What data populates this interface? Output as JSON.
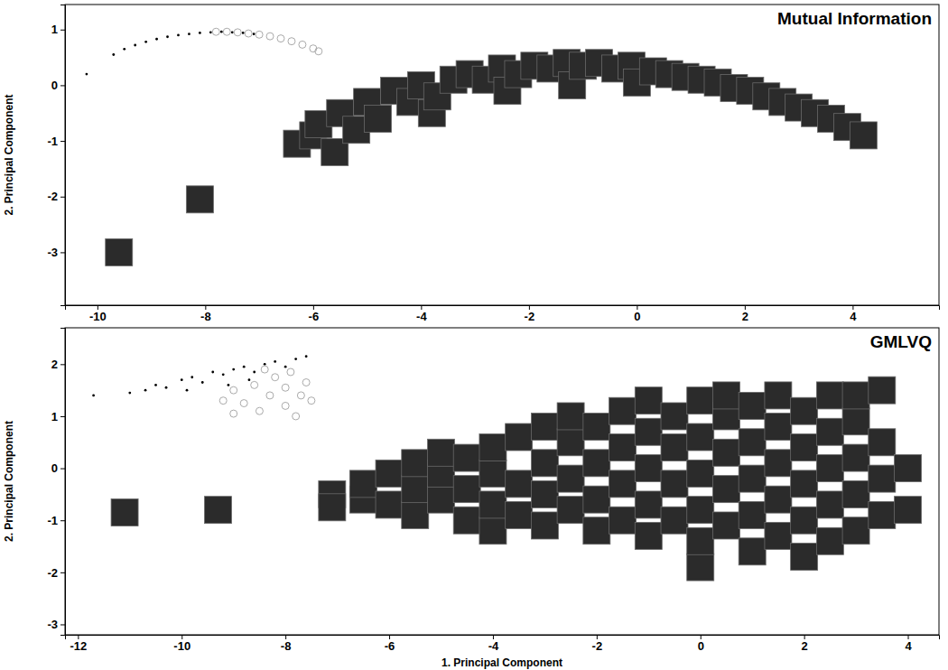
{
  "chart_data": [
    {
      "type": "scatter",
      "title": "Mutual Information",
      "y_label": "2. Principal Component",
      "xlim": [
        -10.6,
        5.6
      ],
      "ylim": [
        -3.95,
        1.45
      ],
      "xticks": [
        -10,
        -8,
        -6,
        -4,
        -2,
        0,
        2,
        4
      ],
      "yticks": [
        -3,
        -2,
        -1,
        0,
        1
      ],
      "series": [
        {
          "color": "#2b2b2b",
          "marker": "square",
          "x": [
            -9.6,
            -8.1,
            -6.3,
            -6.0,
            -5.9,
            -5.6,
            -5.5,
            -5.2,
            -5.0,
            -4.8,
            -4.5,
            -4.2,
            -4.0,
            -3.8,
            -3.7,
            -3.4,
            -3.1,
            -2.8,
            -2.5,
            -2.4,
            -2.2,
            -1.9,
            -1.6,
            -1.3,
            -1.2,
            -1.0,
            -0.7,
            -0.4,
            -0.1,
            0.0,
            0.3,
            0.6,
            0.9,
            1.2,
            1.5,
            1.8,
            2.1,
            2.4,
            2.7,
            3.0,
            3.3,
            3.6,
            3.9,
            4.2
          ],
          "values": [
            -3.0,
            -2.05,
            -1.05,
            -0.9,
            -0.7,
            -1.2,
            -0.5,
            -0.8,
            -0.3,
            -0.6,
            -0.1,
            -0.3,
            0.0,
            -0.5,
            -0.2,
            0.1,
            0.2,
            0.1,
            0.3,
            -0.1,
            0.2,
            0.35,
            0.3,
            0.4,
            0.0,
            0.35,
            0.4,
            0.3,
            0.35,
            0.05,
            0.25,
            0.2,
            0.15,
            0.1,
            0.05,
            -0.05,
            -0.1,
            -0.2,
            -0.3,
            -0.4,
            -0.5,
            -0.6,
            -0.75,
            -0.9
          ]
        },
        {
          "color": "#000000",
          "marker": "dot",
          "x": [
            -10.2,
            -9.7,
            -9.5,
            -9.3,
            -9.1,
            -8.9,
            -8.7,
            -8.5,
            -8.3,
            -8.1,
            -7.9,
            -7.7,
            -7.5,
            -7.3,
            -7.1
          ],
          "values": [
            0.2,
            0.55,
            0.65,
            0.72,
            0.78,
            0.83,
            0.87,
            0.9,
            0.92,
            0.94,
            0.95,
            0.96,
            0.95,
            0.94,
            0.92
          ]
        },
        {
          "color": "#aaaaaa",
          "marker": "circle",
          "x": [
            -7.8,
            -7.6,
            -7.4,
            -7.2,
            -7.0,
            -6.8,
            -6.6,
            -6.4,
            -6.2,
            -6.0,
            -5.9
          ],
          "values": [
            0.96,
            0.96,
            0.95,
            0.93,
            0.91,
            0.88,
            0.84,
            0.79,
            0.73,
            0.66,
            0.61
          ]
        }
      ]
    },
    {
      "type": "scatter",
      "title": "GMLVQ",
      "x_label": "1. Principal Component",
      "y_label": "2. Principal Component",
      "xlim": [
        -12.25,
        4.6
      ],
      "ylim": [
        -3.2,
        2.7
      ],
      "xticks": [
        -12,
        -10,
        -8,
        -6,
        -4,
        -2,
        0,
        2,
        4
      ],
      "yticks": [
        -3,
        -2,
        -1,
        0,
        1,
        2
      ],
      "series": [
        {
          "color": "#2b2b2b",
          "marker": "square",
          "x": [
            -11.1,
            -9.3,
            -7.1,
            -7.1,
            -6.5,
            -6.5,
            -6.0,
            -6.0,
            -5.5,
            -5.5,
            -5.5,
            -5.0,
            -5.0,
            -5.0,
            -4.5,
            -4.5,
            -4.5,
            -4.0,
            -4.0,
            -4.0,
            -4.0,
            -3.5,
            -3.5,
            -3.5,
            -3.0,
            -3.0,
            -3.0,
            -3.0,
            -2.5,
            -2.5,
            -2.5,
            -2.5,
            -2.0,
            -2.0,
            -2.0,
            -2.0,
            -1.5,
            -1.5,
            -1.5,
            -1.5,
            -1.0,
            -1.0,
            -1.0,
            -1.0,
            -1.0,
            -0.5,
            -0.5,
            -0.5,
            -0.5,
            0.0,
            0.0,
            0.0,
            0.0,
            0.0,
            0.0,
            0.5,
            0.5,
            0.5,
            0.5,
            0.5,
            1.0,
            1.0,
            1.0,
            1.0,
            1.0,
            1.5,
            1.5,
            1.5,
            1.5,
            1.5,
            2.0,
            2.0,
            2.0,
            2.0,
            2.0,
            2.5,
            2.5,
            2.5,
            2.5,
            2.5,
            3.0,
            3.0,
            3.0,
            3.0,
            3.0,
            3.5,
            3.5,
            3.5,
            3.5,
            4.0,
            4.0
          ],
          "values": [
            -0.85,
            -0.8,
            -0.5,
            -0.75,
            -0.6,
            -0.3,
            -0.7,
            -0.1,
            -0.9,
            -0.4,
            0.1,
            -0.6,
            -0.1,
            0.3,
            -1.0,
            -0.4,
            0.2,
            -1.2,
            -0.7,
            -0.1,
            0.4,
            -0.9,
            -0.3,
            0.6,
            -1.1,
            -0.5,
            0.1,
            0.8,
            -0.8,
            -0.2,
            0.5,
            1.0,
            -1.2,
            -0.6,
            0.1,
            0.8,
            -1.0,
            -0.3,
            0.4,
            1.1,
            -1.3,
            -0.7,
            0.0,
            0.7,
            1.3,
            -1.0,
            -0.3,
            0.4,
            1.0,
            -1.9,
            -1.4,
            -0.8,
            -0.1,
            0.6,
            1.3,
            -1.1,
            -0.4,
            0.3,
            1.0,
            1.4,
            -1.6,
            -0.9,
            -0.2,
            0.5,
            1.2,
            -1.3,
            -0.6,
            0.1,
            0.8,
            1.4,
            -1.7,
            -1.0,
            -0.3,
            0.4,
            1.1,
            -1.4,
            -0.7,
            0.0,
            0.7,
            1.4,
            -1.2,
            -0.5,
            0.2,
            0.9,
            1.4,
            -0.9,
            -0.2,
            0.5,
            1.5,
            -0.8,
            0.0
          ]
        },
        {
          "color": "#000000",
          "marker": "dot",
          "x": [
            -11.7,
            -11.0,
            -10.7,
            -10.5,
            -10.3,
            -10.0,
            -9.9,
            -9.8,
            -9.6,
            -9.4,
            -9.2,
            -9.1,
            -9.0,
            -8.8,
            -8.7,
            -8.6,
            -8.4,
            -8.2,
            -8.0,
            -7.8,
            -7.6
          ],
          "values": [
            1.4,
            1.45,
            1.5,
            1.6,
            1.55,
            1.7,
            1.5,
            1.75,
            1.65,
            1.85,
            1.8,
            1.6,
            1.9,
            1.95,
            1.7,
            1.85,
            2.0,
            2.05,
            1.95,
            2.1,
            2.15
          ]
        },
        {
          "color": "#aaaaaa",
          "marker": "circle",
          "x": [
            -9.2,
            -9.0,
            -9.0,
            -8.8,
            -8.6,
            -8.5,
            -8.4,
            -8.3,
            -8.2,
            -8.0,
            -8.0,
            -7.9,
            -7.8,
            -7.7,
            -7.6,
            -7.5
          ],
          "values": [
            1.3,
            1.5,
            1.05,
            1.25,
            1.6,
            1.1,
            1.9,
            1.4,
            1.75,
            1.2,
            1.55,
            1.85,
            1.0,
            1.4,
            1.65,
            1.3
          ]
        }
      ]
    }
  ]
}
